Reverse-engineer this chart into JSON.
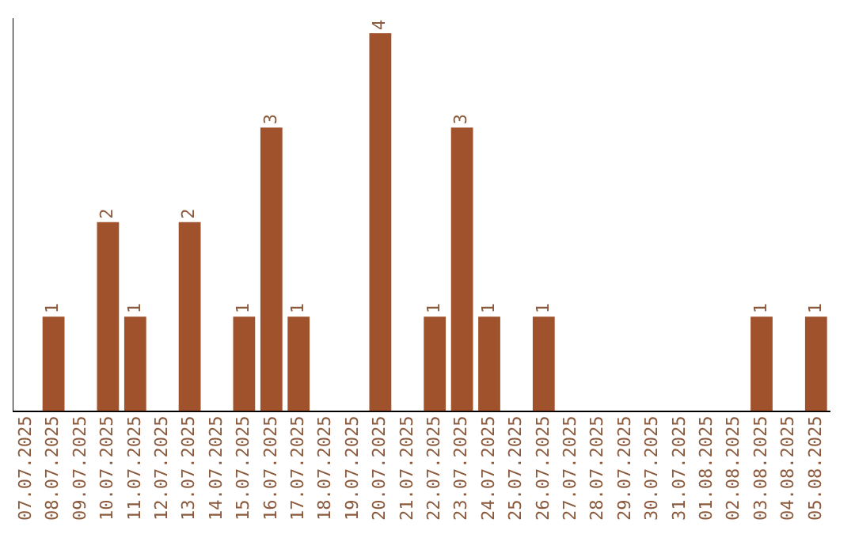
{
  "chart_data": {
    "type": "bar",
    "categories": [
      "07.07.2025",
      "08.07.2025",
      "09.07.2025",
      "10.07.2025",
      "11.07.2025",
      "12.07.2025",
      "13.07.2025",
      "14.07.2025",
      "15.07.2025",
      "16.07.2025",
      "17.07.2025",
      "18.07.2025",
      "19.07.2025",
      "20.07.2025",
      "21.07.2025",
      "22.07.2025",
      "23.07.2025",
      "24.07.2025",
      "25.07.2025",
      "26.07.2025",
      "27.07.2025",
      "28.07.2025",
      "29.07.2025",
      "30.07.2025",
      "31.07.2025",
      "01.08.2025",
      "02.08.2025",
      "03.08.2025",
      "04.08.2025",
      "05.08.2025"
    ],
    "values": [
      0,
      1,
      0,
      2,
      1,
      0,
      2,
      0,
      1,
      3,
      1,
      0,
      0,
      4,
      0,
      1,
      3,
      1,
      0,
      1,
      0,
      0,
      0,
      0,
      0,
      0,
      0,
      1,
      0,
      1
    ],
    "value_labels": [
      null,
      "1",
      null,
      "2",
      "1",
      null,
      "2",
      null,
      "1",
      "3",
      "1",
      null,
      null,
      "4",
      null,
      "1",
      "3",
      "1",
      null,
      "1",
      null,
      null,
      null,
      null,
      null,
      null,
      null,
      "1",
      null,
      "1"
    ],
    "color": "#a0522d",
    "ylim": [
      0,
      4.15
    ],
    "tick_labels": "x",
    "grid": false,
    "legend": false
  }
}
